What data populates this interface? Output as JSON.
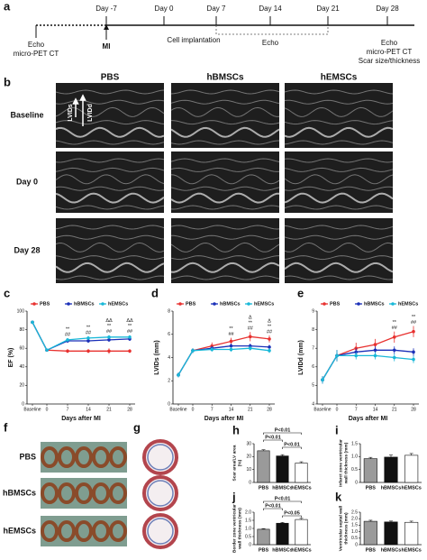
{
  "panel_labels": [
    "a",
    "b",
    "c",
    "d",
    "e",
    "f",
    "g",
    "h",
    "i",
    "j",
    "k"
  ],
  "timeline": {
    "days": [
      "Day -7",
      "Day 0",
      "Day 7",
      "Day 14",
      "Day 21",
      "Day 28"
    ],
    "events": [
      "Echo",
      "micro-PET CT",
      "MI",
      "Cell implantation",
      "Echo",
      "Echo",
      "micro-PET CT",
      "Scar size/thickness"
    ]
  },
  "echo": {
    "columns": [
      "PBS",
      "hBMSCs",
      "hEMSCs"
    ],
    "rows": [
      "Baseline",
      "Day 0",
      "Day 28"
    ],
    "annotations": [
      "LVIDs",
      "LVIDd"
    ]
  },
  "heart_photos": {
    "rows": [
      "PBS",
      "hBMSCs",
      "hEMSCs"
    ]
  },
  "chart_data": [
    {
      "type": "line",
      "y_label": "EF (%)",
      "x_label": "Days after MI",
      "categories": [
        "Baseline",
        "0",
        "7",
        "14",
        "21",
        "28"
      ],
      "series": [
        {
          "name": "PBS",
          "color": "#e8312f",
          "values": [
            88,
            58,
            57,
            57,
            57,
            57
          ],
          "errors": [
            1,
            1,
            2,
            2,
            3,
            2
          ]
        },
        {
          "name": "hBMSCs",
          "color": "#1a2fb8",
          "values": [
            88,
            58,
            68,
            68,
            69,
            70
          ],
          "errors": [
            1,
            1,
            2,
            2,
            2,
            2
          ]
        },
        {
          "name": "hEMSCs",
          "color": "#18b8d8",
          "values": [
            88,
            58,
            69,
            71,
            72,
            72
          ],
          "errors": [
            1,
            1,
            2,
            2,
            2,
            2
          ]
        }
      ],
      "annotations": [
        null,
        null,
        [
          "**",
          "##"
        ],
        [
          "**",
          "##"
        ],
        [
          "ΔΔ",
          "**",
          "##"
        ],
        [
          "ΔΔ",
          "**",
          "##"
        ]
      ],
      "ylim": [
        0,
        100
      ],
      "yticks": [
        0,
        20,
        40,
        60,
        80,
        100
      ]
    },
    {
      "type": "line",
      "y_label": "LVIDs (mm)",
      "x_label": "Days after MI",
      "categories": [
        "Baseline",
        "0",
        "7",
        "14",
        "21",
        "28"
      ],
      "series": [
        {
          "name": "PBS",
          "color": "#e8312f",
          "values": [
            2.5,
            4.6,
            5.0,
            5.4,
            5.8,
            5.6
          ],
          "errors": [
            0.2,
            0.2,
            0.3,
            0.3,
            0.4,
            0.3
          ]
        },
        {
          "name": "hBMSCs",
          "color": "#1a2fb8",
          "values": [
            2.5,
            4.6,
            4.8,
            5.0,
            5.0,
            4.9
          ],
          "errors": [
            0.2,
            0.2,
            0.2,
            0.2,
            0.2,
            0.2
          ]
        },
        {
          "name": "hEMSCs",
          "color": "#18b8d8",
          "values": [
            2.5,
            4.6,
            4.7,
            4.7,
            4.8,
            4.6
          ],
          "errors": [
            0.2,
            0.2,
            0.2,
            0.2,
            0.2,
            0.2
          ]
        }
      ],
      "annotations": [
        null,
        null,
        null,
        [
          "**",
          "##"
        ],
        [
          "Δ",
          "**",
          "##"
        ],
        [
          "Δ",
          "**",
          "##"
        ]
      ],
      "ylim": [
        0,
        8
      ],
      "yticks": [
        0,
        2,
        4,
        6,
        8
      ]
    },
    {
      "type": "line",
      "y_label": "LVIDd (mm)",
      "x_label": "Days after MI",
      "categories": [
        "Baseline",
        "0",
        "7",
        "14",
        "21",
        "28"
      ],
      "series": [
        {
          "name": "PBS",
          "color": "#e8312f",
          "values": [
            5.3,
            6.6,
            7.0,
            7.2,
            7.6,
            7.9
          ],
          "errors": [
            0.2,
            0.3,
            0.3,
            0.3,
            0.3,
            0.3
          ]
        },
        {
          "name": "hBMSCs",
          "color": "#1a2fb8",
          "values": [
            5.3,
            6.6,
            6.8,
            6.9,
            6.9,
            6.8
          ],
          "errors": [
            0.2,
            0.3,
            0.2,
            0.2,
            0.2,
            0.2
          ]
        },
        {
          "name": "hEMSCs",
          "color": "#18b8d8",
          "values": [
            5.3,
            6.6,
            6.6,
            6.6,
            6.5,
            6.4
          ],
          "errors": [
            0.2,
            0.3,
            0.2,
            0.2,
            0.2,
            0.2
          ]
        }
      ],
      "annotations": [
        null,
        null,
        null,
        null,
        [
          "**",
          "##"
        ],
        [
          "**",
          "##"
        ]
      ],
      "ylim": [
        4,
        9
      ],
      "yticks": [
        4,
        5,
        6,
        7,
        8,
        9
      ]
    },
    {
      "type": "bar",
      "y_label": [
        "Scar area/LV area",
        "(%)"
      ],
      "categories": [
        "PBS",
        "hBMSCs",
        "hEMSCs"
      ],
      "values": [
        24.5,
        20.5,
        15
      ],
      "errors": [
        0.8,
        1,
        1
      ],
      "colors": [
        "#9a9a9a",
        "#111111",
        "#ffffff"
      ],
      "comparisons": [
        "P<0.01",
        "P<0.01",
        "P<0.01"
      ],
      "ylim": [
        0,
        30
      ],
      "yticks": [
        0,
        10,
        20,
        30
      ]
    },
    {
      "type": "bar",
      "y_label": [
        "Infarct zone ventricular",
        "wall thickness (mm)"
      ],
      "categories": [
        "PBS",
        "hBMSCs",
        "hEMSCs"
      ],
      "values": [
        0.92,
        0.98,
        1.05
      ],
      "errors": [
        0.05,
        0.08,
        0.07
      ],
      "colors": [
        "#9a9a9a",
        "#111111",
        "#ffffff"
      ],
      "comparisons": [],
      "ylim": [
        0,
        1.5
      ],
      "yticks": [
        0,
        0.5,
        {
          "value": 1,
          "label": "1.0"
        },
        1.5
      ]
    },
    {
      "type": "bar",
      "y_label": [
        "Border zone ventricular",
        "wall thickness (mm)"
      ],
      "categories": [
        "PBS",
        "hBMSCs",
        "hEMSCs"
      ],
      "values": [
        0.95,
        1.32,
        1.55
      ],
      "errors": [
        0.04,
        0.05,
        0.07
      ],
      "colors": [
        "#9a9a9a",
        "#111111",
        "#ffffff"
      ],
      "comparisons": [
        "P<0.01",
        "P<0.01",
        "P<0.05"
      ],
      "ylim": [
        0,
        2
      ],
      "yticks": [
        0,
        0.5,
        {
          "value": 1,
          "label": "1.0"
        },
        1.5,
        {
          "value": 2,
          "label": "2.0"
        }
      ]
    },
    {
      "type": "bar",
      "y_label": [
        "Ventricular septal wall",
        "thickness (mm)"
      ],
      "categories": [
        "PBS",
        "hBMSCs",
        "hEMSCs"
      ],
      "values": [
        1.8,
        1.75,
        1.72
      ],
      "errors": [
        0.08,
        0.07,
        0.09
      ],
      "colors": [
        "#9a9a9a",
        "#111111",
        "#ffffff"
      ],
      "comparisons": [],
      "ylim": [
        0,
        2.5
      ],
      "yticks": [
        0,
        0.5,
        {
          "value": 1,
          "label": "1.0"
        },
        1.5,
        {
          "value": 2,
          "label": "2.0"
        },
        2.5
      ]
    }
  ]
}
